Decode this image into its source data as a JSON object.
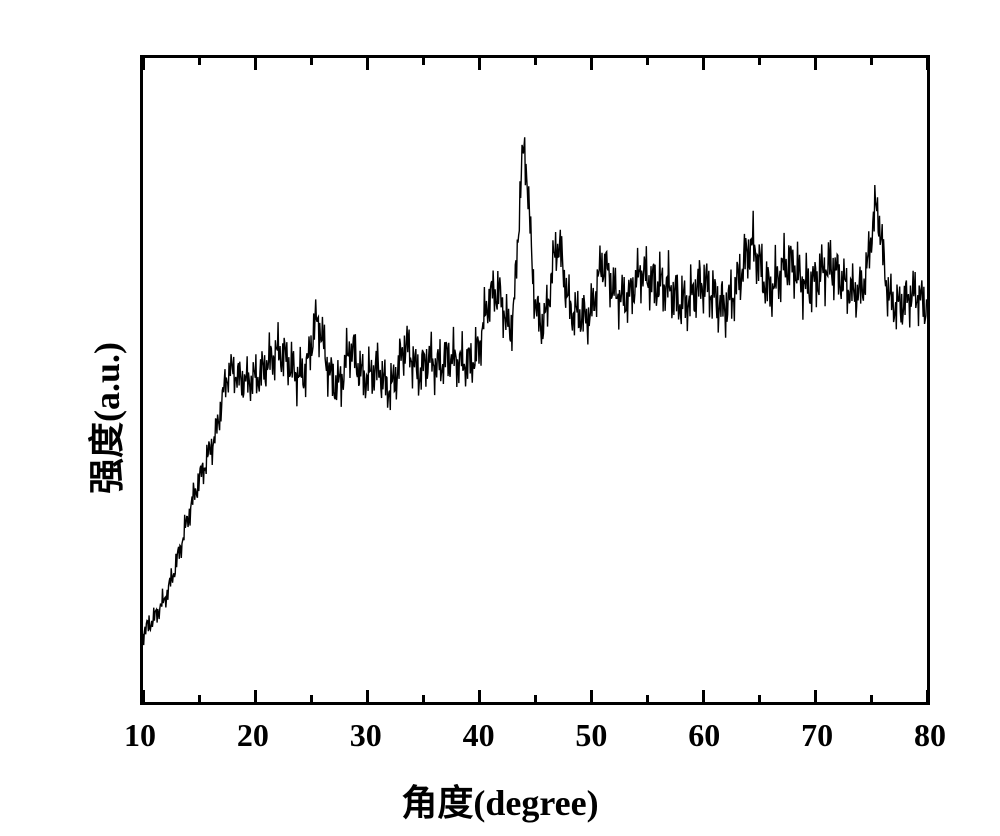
{
  "chart": {
    "type": "line",
    "title": null,
    "x_label": "角度(degree)",
    "y_label": "强度(a.u.)",
    "x_min": 10,
    "x_max": 80,
    "y_min": 0,
    "y_max": 100,
    "x_ticks_major": [
      10,
      20,
      30,
      40,
      50,
      60,
      70,
      80
    ],
    "x_ticks_minor": [
      15,
      25,
      35,
      45,
      55,
      65,
      75
    ],
    "label_fontsize": 36,
    "tick_fontsize": 32,
    "font_weight": "bold",
    "line_color": "#000000",
    "line_width": 1.4,
    "border_color": "#000000",
    "border_width": 3,
    "background_color": "#ffffff",
    "tick_length_major": 12,
    "tick_length_minor": 7,
    "baseline": [
      [
        10,
        10
      ],
      [
        11,
        12
      ],
      [
        12,
        16
      ],
      [
        13,
        22
      ],
      [
        14,
        28
      ],
      [
        15,
        34
      ],
      [
        16,
        40
      ],
      [
        17,
        44
      ],
      [
        18,
        48
      ],
      [
        19,
        50
      ],
      [
        20,
        52
      ],
      [
        21,
        53
      ],
      [
        22,
        53
      ],
      [
        23,
        52
      ],
      [
        24,
        51
      ],
      [
        25,
        50
      ],
      [
        26,
        50
      ],
      [
        27,
        49
      ],
      [
        28,
        49
      ],
      [
        29,
        49
      ],
      [
        30,
        49
      ],
      [
        31,
        49
      ],
      [
        32,
        50
      ],
      [
        33,
        50
      ],
      [
        34,
        50
      ],
      [
        35,
        51
      ],
      [
        36,
        51
      ],
      [
        37,
        52
      ],
      [
        38,
        52
      ],
      [
        39,
        53
      ],
      [
        40,
        53
      ],
      [
        41,
        54
      ],
      [
        42,
        55
      ],
      [
        43,
        56
      ],
      [
        44,
        57
      ],
      [
        45,
        58
      ],
      [
        46,
        58
      ],
      [
        47,
        59
      ],
      [
        48,
        59
      ],
      [
        49,
        60
      ],
      [
        50,
        60
      ],
      [
        51,
        61
      ],
      [
        52,
        61
      ],
      [
        53,
        61
      ],
      [
        54,
        62
      ],
      [
        55,
        62
      ],
      [
        56,
        62
      ],
      [
        57,
        63
      ],
      [
        58,
        63
      ],
      [
        59,
        63
      ],
      [
        60,
        64
      ],
      [
        61,
        64
      ],
      [
        62,
        64
      ],
      [
        63,
        65
      ],
      [
        64,
        65
      ],
      [
        65,
        65
      ],
      [
        66,
        65
      ],
      [
        67,
        66
      ],
      [
        68,
        66
      ],
      [
        69,
        65
      ],
      [
        70,
        65
      ],
      [
        71,
        65
      ],
      [
        72,
        65
      ],
      [
        73,
        65
      ],
      [
        74,
        64
      ],
      [
        75,
        64
      ],
      [
        76,
        64
      ],
      [
        77,
        64
      ],
      [
        78,
        63
      ],
      [
        79,
        63
      ],
      [
        80,
        62
      ]
    ],
    "peaks": [
      {
        "x": 17.5,
        "height": 5,
        "width": 0.6
      },
      {
        "x": 25.5,
        "height": 7,
        "width": 0.5
      },
      {
        "x": 28.5,
        "height": 6,
        "width": 0.5
      },
      {
        "x": 31.0,
        "height": 4,
        "width": 0.5
      },
      {
        "x": 33.5,
        "height": 5,
        "width": 0.6
      },
      {
        "x": 35.5,
        "height": 4,
        "width": 0.5
      },
      {
        "x": 41.0,
        "height": 6,
        "width": 0.6
      },
      {
        "x": 42.0,
        "height": 5,
        "width": 0.5
      },
      {
        "x": 44.0,
        "height": 28,
        "width": 0.5
      },
      {
        "x": 47.0,
        "height": 14,
        "width": 0.6
      },
      {
        "x": 51.0,
        "height": 8,
        "width": 0.6
      },
      {
        "x": 54.5,
        "height": 5,
        "width": 0.6
      },
      {
        "x": 64.5,
        "height": 6,
        "width": 0.7
      },
      {
        "x": 75.5,
        "height": 12,
        "width": 0.5
      }
    ],
    "noise_amp": 3.0,
    "noise_freq": 0.15
  }
}
